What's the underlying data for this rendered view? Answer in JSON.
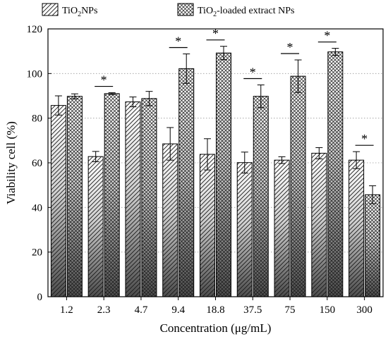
{
  "chart_data": {
    "type": "bar",
    "title": "",
    "xlabel": "Concentration (μg/mL)",
    "ylabel": "Viability cell (%)",
    "ylim": [
      0,
      120
    ],
    "yticks": [
      0,
      20,
      40,
      60,
      80,
      100,
      120
    ],
    "grid": "horizontal dotted",
    "legend_position": "top",
    "categories": [
      "1.2",
      "2.3",
      "4.7",
      "9.4",
      "18.8",
      "37.5",
      "75",
      "150",
      "300"
    ],
    "series": [
      {
        "name": "TiO2NPs",
        "name_parts": {
          "pre": "TiO",
          "sub": "2",
          "post": "NPs"
        },
        "pattern": "diagonal-hatch",
        "values": [
          85.7,
          62.8,
          87.3,
          68.5,
          63.8,
          60.1,
          61.2,
          64.3,
          61.2
        ],
        "errors": [
          4.3,
          2.3,
          2.2,
          7.3,
          7.0,
          4.7,
          1.5,
          2.5,
          3.8
        ]
      },
      {
        "name": "TiO2-loaded extract NPs",
        "name_parts": {
          "pre": "TiO",
          "sub": "2",
          "post": "-loaded extract NPs"
        },
        "pattern": "crosshatch",
        "values": [
          89.8,
          91.0,
          88.8,
          102.2,
          109.2,
          89.8,
          98.8,
          109.7,
          45.7
        ],
        "errors": [
          1.1,
          0.4,
          3.2,
          6.6,
          3.0,
          5.1,
          7.3,
          1.6,
          4.0
        ]
      }
    ],
    "significance": [
      {
        "category": "2.3",
        "label": "*"
      },
      {
        "category": "9.4",
        "label": "*"
      },
      {
        "category": "18.8",
        "label": "*"
      },
      {
        "category": "37.5",
        "label": "*"
      },
      {
        "category": "75",
        "label": "*"
      },
      {
        "category": "150",
        "label": "*"
      },
      {
        "category": "300",
        "label": "*"
      }
    ]
  }
}
